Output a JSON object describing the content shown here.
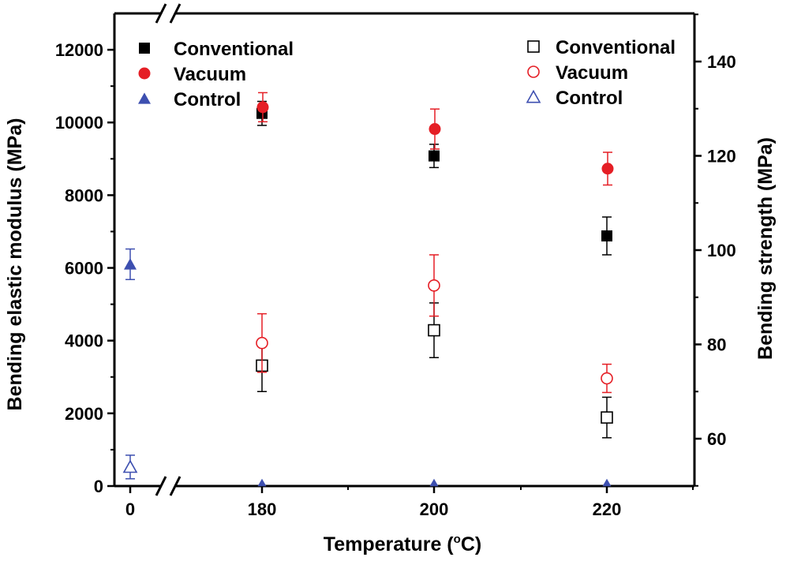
{
  "chart_data": {
    "type": "scatter",
    "x_categories": [
      "0",
      "180",
      "200",
      "220"
    ],
    "x_break": "between 0 and 180",
    "xlabel_main": "Temperature (",
    "xlabel_sup": "o",
    "xlabel_end": "C)",
    "ylabel_left": "Bending elastic modulus (MPa)",
    "ylabel_right": "Bending strength (MPa)",
    "ylim_left": [
      0,
      13000
    ],
    "ylim_right": [
      50,
      150
    ],
    "yticks_left": [
      0,
      2000,
      4000,
      6000,
      8000,
      10000,
      12000
    ],
    "yticks_right": [
      60,
      80,
      100,
      120,
      140
    ],
    "legend_left": [
      {
        "label": "Conventional",
        "marker": "square",
        "filled": true,
        "color": "#000000"
      },
      {
        "label": "Vacuum",
        "marker": "circle",
        "filled": true,
        "color": "#e51e25"
      },
      {
        "label": "Control",
        "marker": "triangle",
        "filled": true,
        "color": "#3d4fb0"
      }
    ],
    "legend_right": [
      {
        "label": "Conventional",
        "marker": "square",
        "filled": false,
        "color": "#000000"
      },
      {
        "label": "Vacuum",
        "marker": "circle",
        "filled": false,
        "color": "#e51e25"
      },
      {
        "label": "Control",
        "marker": "triangle",
        "filled": false,
        "color": "#3d4fb0"
      }
    ],
    "series": [
      {
        "name": "Conventional modulus",
        "axis": "left",
        "marker": "square",
        "filled": true,
        "color": "#000000",
        "points": [
          {
            "x": "180",
            "y": 10250,
            "err": 330
          },
          {
            "x": "200",
            "y": 9080,
            "err": 320
          },
          {
            "x": "220",
            "y": 6880,
            "err": 520
          }
        ]
      },
      {
        "name": "Vacuum modulus",
        "axis": "left",
        "marker": "circle",
        "filled": true,
        "color": "#e51e25",
        "points": [
          {
            "x": "180",
            "y": 10420,
            "err": 400
          },
          {
            "x": "200",
            "y": 9820,
            "err": 550
          },
          {
            "x": "220",
            "y": 8730,
            "err": 450
          }
        ]
      },
      {
        "name": "Control modulus",
        "axis": "left",
        "marker": "triangle",
        "filled": true,
        "color": "#3d4fb0",
        "points": [
          {
            "x": "0",
            "y": 6100,
            "err": 420
          },
          {
            "x": "180",
            "y": 0,
            "err": 0
          },
          {
            "x": "200",
            "y": 0,
            "err": 0
          },
          {
            "x": "220",
            "y": 0,
            "err": 0
          }
        ]
      },
      {
        "name": "Conventional strength",
        "axis": "right",
        "marker": "square",
        "filled": false,
        "color": "#000000",
        "points": [
          {
            "x": "180",
            "y": 75.5,
            "err": 5.5
          },
          {
            "x": "200",
            "y": 83.0,
            "err": 5.8
          },
          {
            "x": "220",
            "y": 64.5,
            "err": 4.3
          }
        ]
      },
      {
        "name": "Vacuum strength",
        "axis": "right",
        "marker": "circle",
        "filled": false,
        "color": "#e51e25",
        "points": [
          {
            "x": "180",
            "y": 80.3,
            "err": 6.2
          },
          {
            "x": "200",
            "y": 92.5,
            "err": 6.5
          },
          {
            "x": "220",
            "y": 72.8,
            "err": 3.0
          }
        ]
      },
      {
        "name": "Control strength",
        "axis": "right",
        "marker": "triangle",
        "filled": false,
        "color": "#3d4fb0",
        "points": [
          {
            "x": "0",
            "y": 54.0,
            "err": 2.5
          }
        ]
      }
    ]
  }
}
